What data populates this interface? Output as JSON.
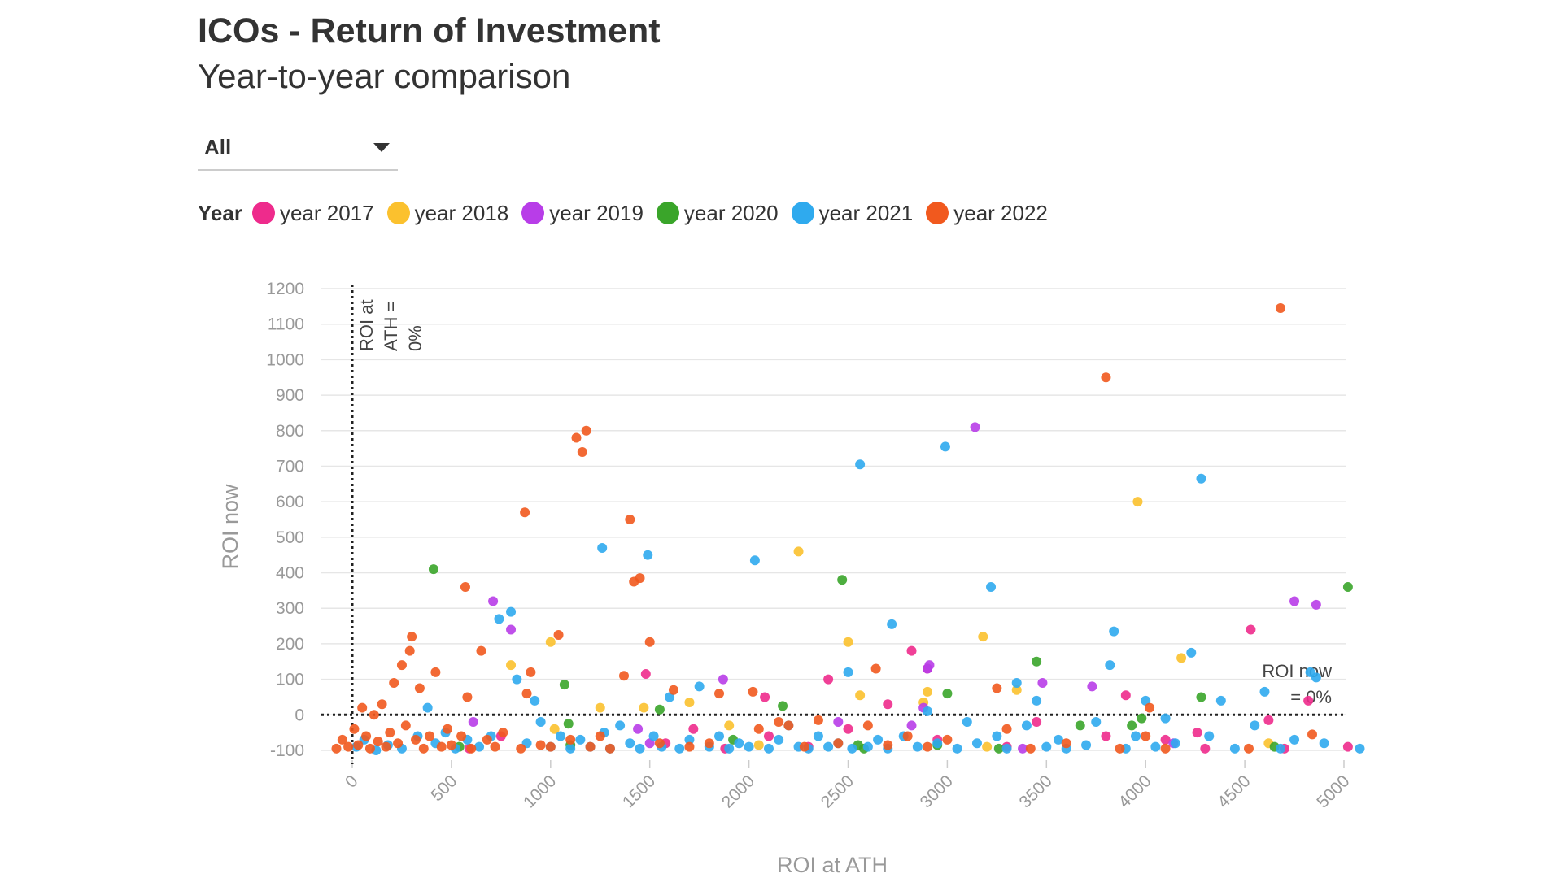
{
  "header": {
    "title": "ICOs - Return of Investment",
    "subtitle": "Year-to-year comparison"
  },
  "filter": {
    "selected": "All"
  },
  "legend": {
    "title": "Year",
    "items": [
      {
        "label": "year 2017",
        "color": "#ee2b8c"
      },
      {
        "label": "year 2018",
        "color": "#fbc12e"
      },
      {
        "label": "year 2019",
        "color": "#b83de8"
      },
      {
        "label": "year 2020",
        "color": "#3aa52a"
      },
      {
        "label": "year 2021",
        "color": "#2faaee"
      },
      {
        "label": "year 2022",
        "color": "#f1591e"
      }
    ]
  },
  "chart_data": {
    "type": "scatter",
    "xlabel": "ROI at ATH",
    "ylabel": "ROI now",
    "xlim": [
      -100,
      5000
    ],
    "ylim": [
      -130,
      1200
    ],
    "x_ticks": [
      0,
      500,
      1000,
      1500,
      2000,
      2500,
      3000,
      3500,
      4000,
      4500,
      5000
    ],
    "y_ticks": [
      -100,
      0,
      100,
      200,
      300,
      400,
      500,
      600,
      700,
      800,
      900,
      1000,
      1100,
      1200
    ],
    "grid": true,
    "legend_position": "top",
    "reference_lines": [
      {
        "axis": "x",
        "value": 0,
        "label": "ROI at ATH = 0%"
      },
      {
        "axis": "y",
        "value": 0,
        "label": "ROI now = 0%"
      }
    ],
    "series": [
      {
        "name": "year 2017",
        "color": "#ee2b8c",
        "points": [
          [
            590,
            -95
          ],
          [
            750,
            -60
          ],
          [
            1480,
            115
          ],
          [
            1580,
            -80
          ],
          [
            1720,
            -40
          ],
          [
            1880,
            -95
          ],
          [
            2080,
            50
          ],
          [
            2100,
            -60
          ],
          [
            2300,
            -90
          ],
          [
            2400,
            100
          ],
          [
            2500,
            -40
          ],
          [
            2700,
            30
          ],
          [
            2820,
            180
          ],
          [
            2900,
            130
          ],
          [
            2950,
            -70
          ],
          [
            3300,
            -90
          ],
          [
            3450,
            -20
          ],
          [
            3800,
            -60
          ],
          [
            3900,
            55
          ],
          [
            4100,
            -70
          ],
          [
            4260,
            -50
          ],
          [
            4300,
            -95
          ],
          [
            4530,
            240
          ],
          [
            4620,
            -15
          ],
          [
            4700,
            -95
          ],
          [
            4820,
            40
          ],
          [
            5020,
            -90
          ]
        ]
      },
      {
        "name": "year 2018",
        "color": "#fbc12e",
        "points": [
          [
            800,
            140
          ],
          [
            1000,
            205
          ],
          [
            1020,
            -40
          ],
          [
            1250,
            20
          ],
          [
            1470,
            20
          ],
          [
            1700,
            35
          ],
          [
            1900,
            -30
          ],
          [
            2050,
            -85
          ],
          [
            2250,
            460
          ],
          [
            2500,
            205
          ],
          [
            2560,
            55
          ],
          [
            2880,
            35
          ],
          [
            2900,
            65
          ],
          [
            3180,
            220
          ],
          [
            3200,
            -90
          ],
          [
            3350,
            70
          ],
          [
            3960,
            600
          ],
          [
            4180,
            160
          ],
          [
            4620,
            -80
          ]
        ]
      },
      {
        "name": "year 2019",
        "color": "#b83de8",
        "points": [
          [
            610,
            -20
          ],
          [
            710,
            320
          ],
          [
            800,
            240
          ],
          [
            1440,
            -40
          ],
          [
            1500,
            -80
          ],
          [
            1870,
            100
          ],
          [
            2450,
            -20
          ],
          [
            2820,
            -30
          ],
          [
            2880,
            20
          ],
          [
            2900,
            130
          ],
          [
            2910,
            140
          ],
          [
            3140,
            810
          ],
          [
            3380,
            -95
          ],
          [
            3480,
            90
          ],
          [
            3730,
            80
          ],
          [
            4140,
            -80
          ],
          [
            4750,
            320
          ],
          [
            4860,
            310
          ]
        ]
      },
      {
        "name": "year 2020",
        "color": "#3aa52a",
        "points": [
          [
            410,
            410
          ],
          [
            540,
            -90
          ],
          [
            1100,
            -85
          ],
          [
            1070,
            85
          ],
          [
            1090,
            -25
          ],
          [
            1550,
            15
          ],
          [
            1920,
            -70
          ],
          [
            2170,
            25
          ],
          [
            2470,
            380
          ],
          [
            2550,
            -85
          ],
          [
            2580,
            -95
          ],
          [
            2950,
            -85
          ],
          [
            3000,
            60
          ],
          [
            3260,
            -95
          ],
          [
            3450,
            150
          ],
          [
            3670,
            -30
          ],
          [
            3930,
            -30
          ],
          [
            3980,
            -10
          ],
          [
            4280,
            50
          ],
          [
            4650,
            -90
          ],
          [
            5020,
            360
          ]
        ]
      },
      {
        "name": "year 2021",
        "color": "#2faaee",
        "points": [
          [
            20,
            -90
          ],
          [
            60,
            -70
          ],
          [
            120,
            -100
          ],
          [
            180,
            -85
          ],
          [
            250,
            -95
          ],
          [
            330,
            -60
          ],
          [
            380,
            20
          ],
          [
            420,
            -80
          ],
          [
            470,
            -50
          ],
          [
            520,
            -95
          ],
          [
            580,
            -70
          ],
          [
            640,
            -90
          ],
          [
            700,
            -60
          ],
          [
            740,
            270
          ],
          [
            800,
            290
          ],
          [
            830,
            100
          ],
          [
            880,
            -80
          ],
          [
            920,
            40
          ],
          [
            950,
            -20
          ],
          [
            1000,
            -90
          ],
          [
            1050,
            -60
          ],
          [
            1100,
            -95
          ],
          [
            1150,
            -70
          ],
          [
            1200,
            -90
          ],
          [
            1260,
            470
          ],
          [
            1270,
            -50
          ],
          [
            1300,
            -95
          ],
          [
            1350,
            -30
          ],
          [
            1400,
            -80
          ],
          [
            1450,
            -95
          ],
          [
            1490,
            450
          ],
          [
            1520,
            -60
          ],
          [
            1560,
            -90
          ],
          [
            1600,
            50
          ],
          [
            1650,
            -95
          ],
          [
            1700,
            -70
          ],
          [
            1750,
            80
          ],
          [
            1800,
            -90
          ],
          [
            1850,
            -60
          ],
          [
            1900,
            -95
          ],
          [
            1950,
            -80
          ],
          [
            2000,
            -90
          ],
          [
            2030,
            435
          ],
          [
            2100,
            -95
          ],
          [
            2150,
            -70
          ],
          [
            2200,
            -30
          ],
          [
            2250,
            -90
          ],
          [
            2300,
            -95
          ],
          [
            2350,
            -60
          ],
          [
            2400,
            -90
          ],
          [
            2450,
            -80
          ],
          [
            2500,
            120
          ],
          [
            2520,
            -95
          ],
          [
            2560,
            705
          ],
          [
            2600,
            -90
          ],
          [
            2650,
            -70
          ],
          [
            2700,
            -95
          ],
          [
            2720,
            255
          ],
          [
            2780,
            -60
          ],
          [
            2850,
            -90
          ],
          [
            2900,
            10
          ],
          [
            2950,
            -80
          ],
          [
            2990,
            755
          ],
          [
            3050,
            -95
          ],
          [
            3100,
            -20
          ],
          [
            3150,
            -80
          ],
          [
            3220,
            360
          ],
          [
            3250,
            -60
          ],
          [
            3300,
            -95
          ],
          [
            3350,
            90
          ],
          [
            3400,
            -30
          ],
          [
            3450,
            40
          ],
          [
            3500,
            -90
          ],
          [
            3560,
            -70
          ],
          [
            3600,
            -95
          ],
          [
            3700,
            -85
          ],
          [
            3750,
            -20
          ],
          [
            3820,
            140
          ],
          [
            3840,
            235
          ],
          [
            3900,
            -95
          ],
          [
            3950,
            -60
          ],
          [
            4000,
            40
          ],
          [
            4050,
            -90
          ],
          [
            4100,
            -10
          ],
          [
            4150,
            -80
          ],
          [
            4230,
            175
          ],
          [
            4280,
            665
          ],
          [
            4320,
            -60
          ],
          [
            4380,
            40
          ],
          [
            4450,
            -95
          ],
          [
            4550,
            -30
          ],
          [
            4600,
            65
          ],
          [
            4680,
            -95
          ],
          [
            4750,
            -70
          ],
          [
            4830,
            120
          ],
          [
            4860,
            105
          ],
          [
            4900,
            -80
          ],
          [
            5080,
            -95
          ]
        ]
      },
      {
        "name": "year 2022",
        "color": "#f1591e",
        "points": [
          [
            -80,
            -95
          ],
          [
            -50,
            -70
          ],
          [
            -20,
            -90
          ],
          [
            10,
            -40
          ],
          [
            30,
            -85
          ],
          [
            50,
            20
          ],
          [
            70,
            -60
          ],
          [
            90,
            -95
          ],
          [
            110,
            0
          ],
          [
            130,
            -75
          ],
          [
            150,
            30
          ],
          [
            170,
            -90
          ],
          [
            190,
            -50
          ],
          [
            210,
            90
          ],
          [
            230,
            -80
          ],
          [
            250,
            140
          ],
          [
            270,
            -30
          ],
          [
            290,
            180
          ],
          [
            300,
            220
          ],
          [
            320,
            -70
          ],
          [
            340,
            75
          ],
          [
            360,
            -95
          ],
          [
            390,
            -60
          ],
          [
            420,
            120
          ],
          [
            450,
            -90
          ],
          [
            480,
            -40
          ],
          [
            500,
            -85
          ],
          [
            550,
            -60
          ],
          [
            570,
            360
          ],
          [
            580,
            50
          ],
          [
            600,
            -95
          ],
          [
            650,
            180
          ],
          [
            680,
            -70
          ],
          [
            720,
            -90
          ],
          [
            760,
            -50
          ],
          [
            850,
            -95
          ],
          [
            870,
            570
          ],
          [
            880,
            60
          ],
          [
            900,
            120
          ],
          [
            950,
            -85
          ],
          [
            1000,
            -90
          ],
          [
            1040,
            225
          ],
          [
            1100,
            -70
          ],
          [
            1130,
            780
          ],
          [
            1160,
            740
          ],
          [
            1180,
            800
          ],
          [
            1200,
            -90
          ],
          [
            1250,
            -60
          ],
          [
            1300,
            -95
          ],
          [
            1370,
            110
          ],
          [
            1400,
            550
          ],
          [
            1420,
            375
          ],
          [
            1450,
            385
          ],
          [
            1500,
            205
          ],
          [
            1550,
            -80
          ],
          [
            1620,
            70
          ],
          [
            1700,
            -90
          ],
          [
            1800,
            -80
          ],
          [
            1850,
            60
          ],
          [
            2020,
            65
          ],
          [
            2050,
            -40
          ],
          [
            2150,
            -20
          ],
          [
            2200,
            -30
          ],
          [
            2280,
            -90
          ],
          [
            2350,
            -15
          ],
          [
            2450,
            -80
          ],
          [
            2600,
            -30
          ],
          [
            2640,
            130
          ],
          [
            2700,
            -85
          ],
          [
            2800,
            -60
          ],
          [
            2900,
            -90
          ],
          [
            3000,
            -70
          ],
          [
            3250,
            75
          ],
          [
            3300,
            -40
          ],
          [
            3420,
            -95
          ],
          [
            3600,
            -80
          ],
          [
            3800,
            950
          ],
          [
            3870,
            -95
          ],
          [
            4000,
            -60
          ],
          [
            4020,
            20
          ],
          [
            4100,
            -95
          ],
          [
            4520,
            -95
          ],
          [
            4680,
            1145
          ],
          [
            4840,
            -55
          ]
        ]
      }
    ]
  }
}
